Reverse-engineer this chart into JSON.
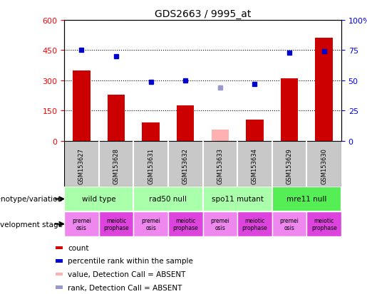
{
  "title": "GDS2663 / 9995_at",
  "samples": [
    "GSM153627",
    "GSM153628",
    "GSM153631",
    "GSM153632",
    "GSM153633",
    "GSM153634",
    "GSM153629",
    "GSM153630"
  ],
  "count_values": [
    350,
    230,
    90,
    175,
    null,
    105,
    310,
    510
  ],
  "count_absent": [
    null,
    null,
    null,
    null,
    55,
    null,
    null,
    null
  ],
  "rank_values": [
    75,
    70,
    49,
    50,
    null,
    47,
    73,
    74
  ],
  "rank_absent": [
    null,
    null,
    null,
    null,
    44,
    null,
    null,
    null
  ],
  "ylim_left": [
    0,
    600
  ],
  "ylim_right": [
    0,
    100
  ],
  "yticks_left": [
    0,
    150,
    300,
    450,
    600
  ],
  "yticks_right": [
    0,
    25,
    50,
    75,
    100
  ],
  "bar_color": "#cc0000",
  "bar_absent_color": "#ffb0b0",
  "dot_color": "#0000cc",
  "dot_absent_color": "#9999cc",
  "bg_color": "#ffffff",
  "xticklabel_bg": "#c8c8c8",
  "genotype_groups": [
    {
      "label": "wild type",
      "start": 0,
      "end": 2,
      "color": "#aaffaa"
    },
    {
      "label": "rad50 null",
      "start": 2,
      "end": 4,
      "color": "#aaffaa"
    },
    {
      "label": "spo11 mutant",
      "start": 4,
      "end": 6,
      "color": "#aaffaa"
    },
    {
      "label": "mre11 null",
      "start": 6,
      "end": 8,
      "color": "#55ee55"
    }
  ],
  "dev_stage_labels": [
    "premei\nosis",
    "meiotic\nprophase",
    "premei\nosis",
    "meiotic\nprophase",
    "premei\nosis",
    "meiotic\nprophase",
    "premei\nosis",
    "meiotic\nprophase"
  ],
  "dev_colors_alt": [
    "#ff99ff",
    "#cc44cc"
  ],
  "legend_items": [
    {
      "label": "count",
      "color": "#cc0000"
    },
    {
      "label": "percentile rank within the sample",
      "color": "#0000cc"
    },
    {
      "label": "value, Detection Call = ABSENT",
      "color": "#ffb0b0"
    },
    {
      "label": "rank, Detection Call = ABSENT",
      "color": "#9999cc"
    }
  ]
}
